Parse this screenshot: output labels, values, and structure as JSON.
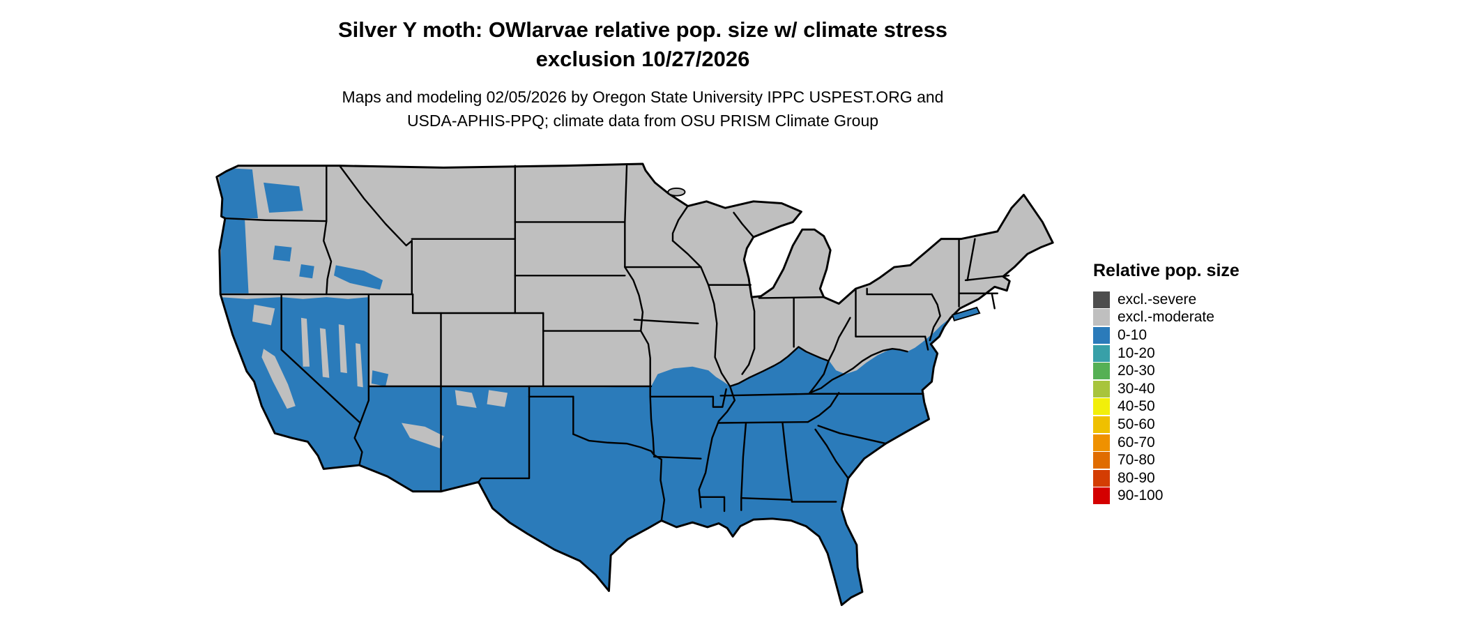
{
  "page": {
    "background": "#ffffff"
  },
  "title": {
    "line1": "Silver Y moth: OWlarvae relative pop. size w/ climate stress",
    "line2": "exclusion 10/27/2026"
  },
  "subtitle": {
    "line1": "Maps and modeling 02/05/2026 by Oregon State University IPPC USPEST.ORG and",
    "line2": "USDA-APHIS-PPQ; climate data from OSU PRISM Climate Group"
  },
  "legend": {
    "title": "Relative pop. size",
    "items": [
      {
        "label": "excl.-severe",
        "color": "#4d4d4d"
      },
      {
        "label": "excl.-moderate",
        "color": "#bfbfbf"
      },
      {
        "label": "0-10",
        "color": "#2b7bba"
      },
      {
        "label": "10-20",
        "color": "#38a0a8"
      },
      {
        "label": "20-30",
        "color": "#55b054"
      },
      {
        "label": "30-40",
        "color": "#a8c43c"
      },
      {
        "label": "40-50",
        "color": "#f2ef0a"
      },
      {
        "label": "50-60",
        "color": "#efc000"
      },
      {
        "label": "60-70",
        "color": "#ef9100"
      },
      {
        "label": "70-80",
        "color": "#e06c00"
      },
      {
        "label": "80-90",
        "color": "#d43d03"
      },
      {
        "label": "90-100",
        "color": "#d40000"
      }
    ]
  },
  "map": {
    "region": "Contiguous United States",
    "depicts": "Silver Y moth overwintering larvae relative population size with climate stress exclusion",
    "classes_shown_on_map": [
      "excl.-moderate",
      "0-10"
    ],
    "north_region_class": "excl.-moderate",
    "south_region_class": "0-10",
    "colors": {
      "land_gray": "#bfbfbf",
      "pop_blue": "#2b7bba",
      "state_border": "#000000",
      "background": "#ffffff"
    }
  }
}
